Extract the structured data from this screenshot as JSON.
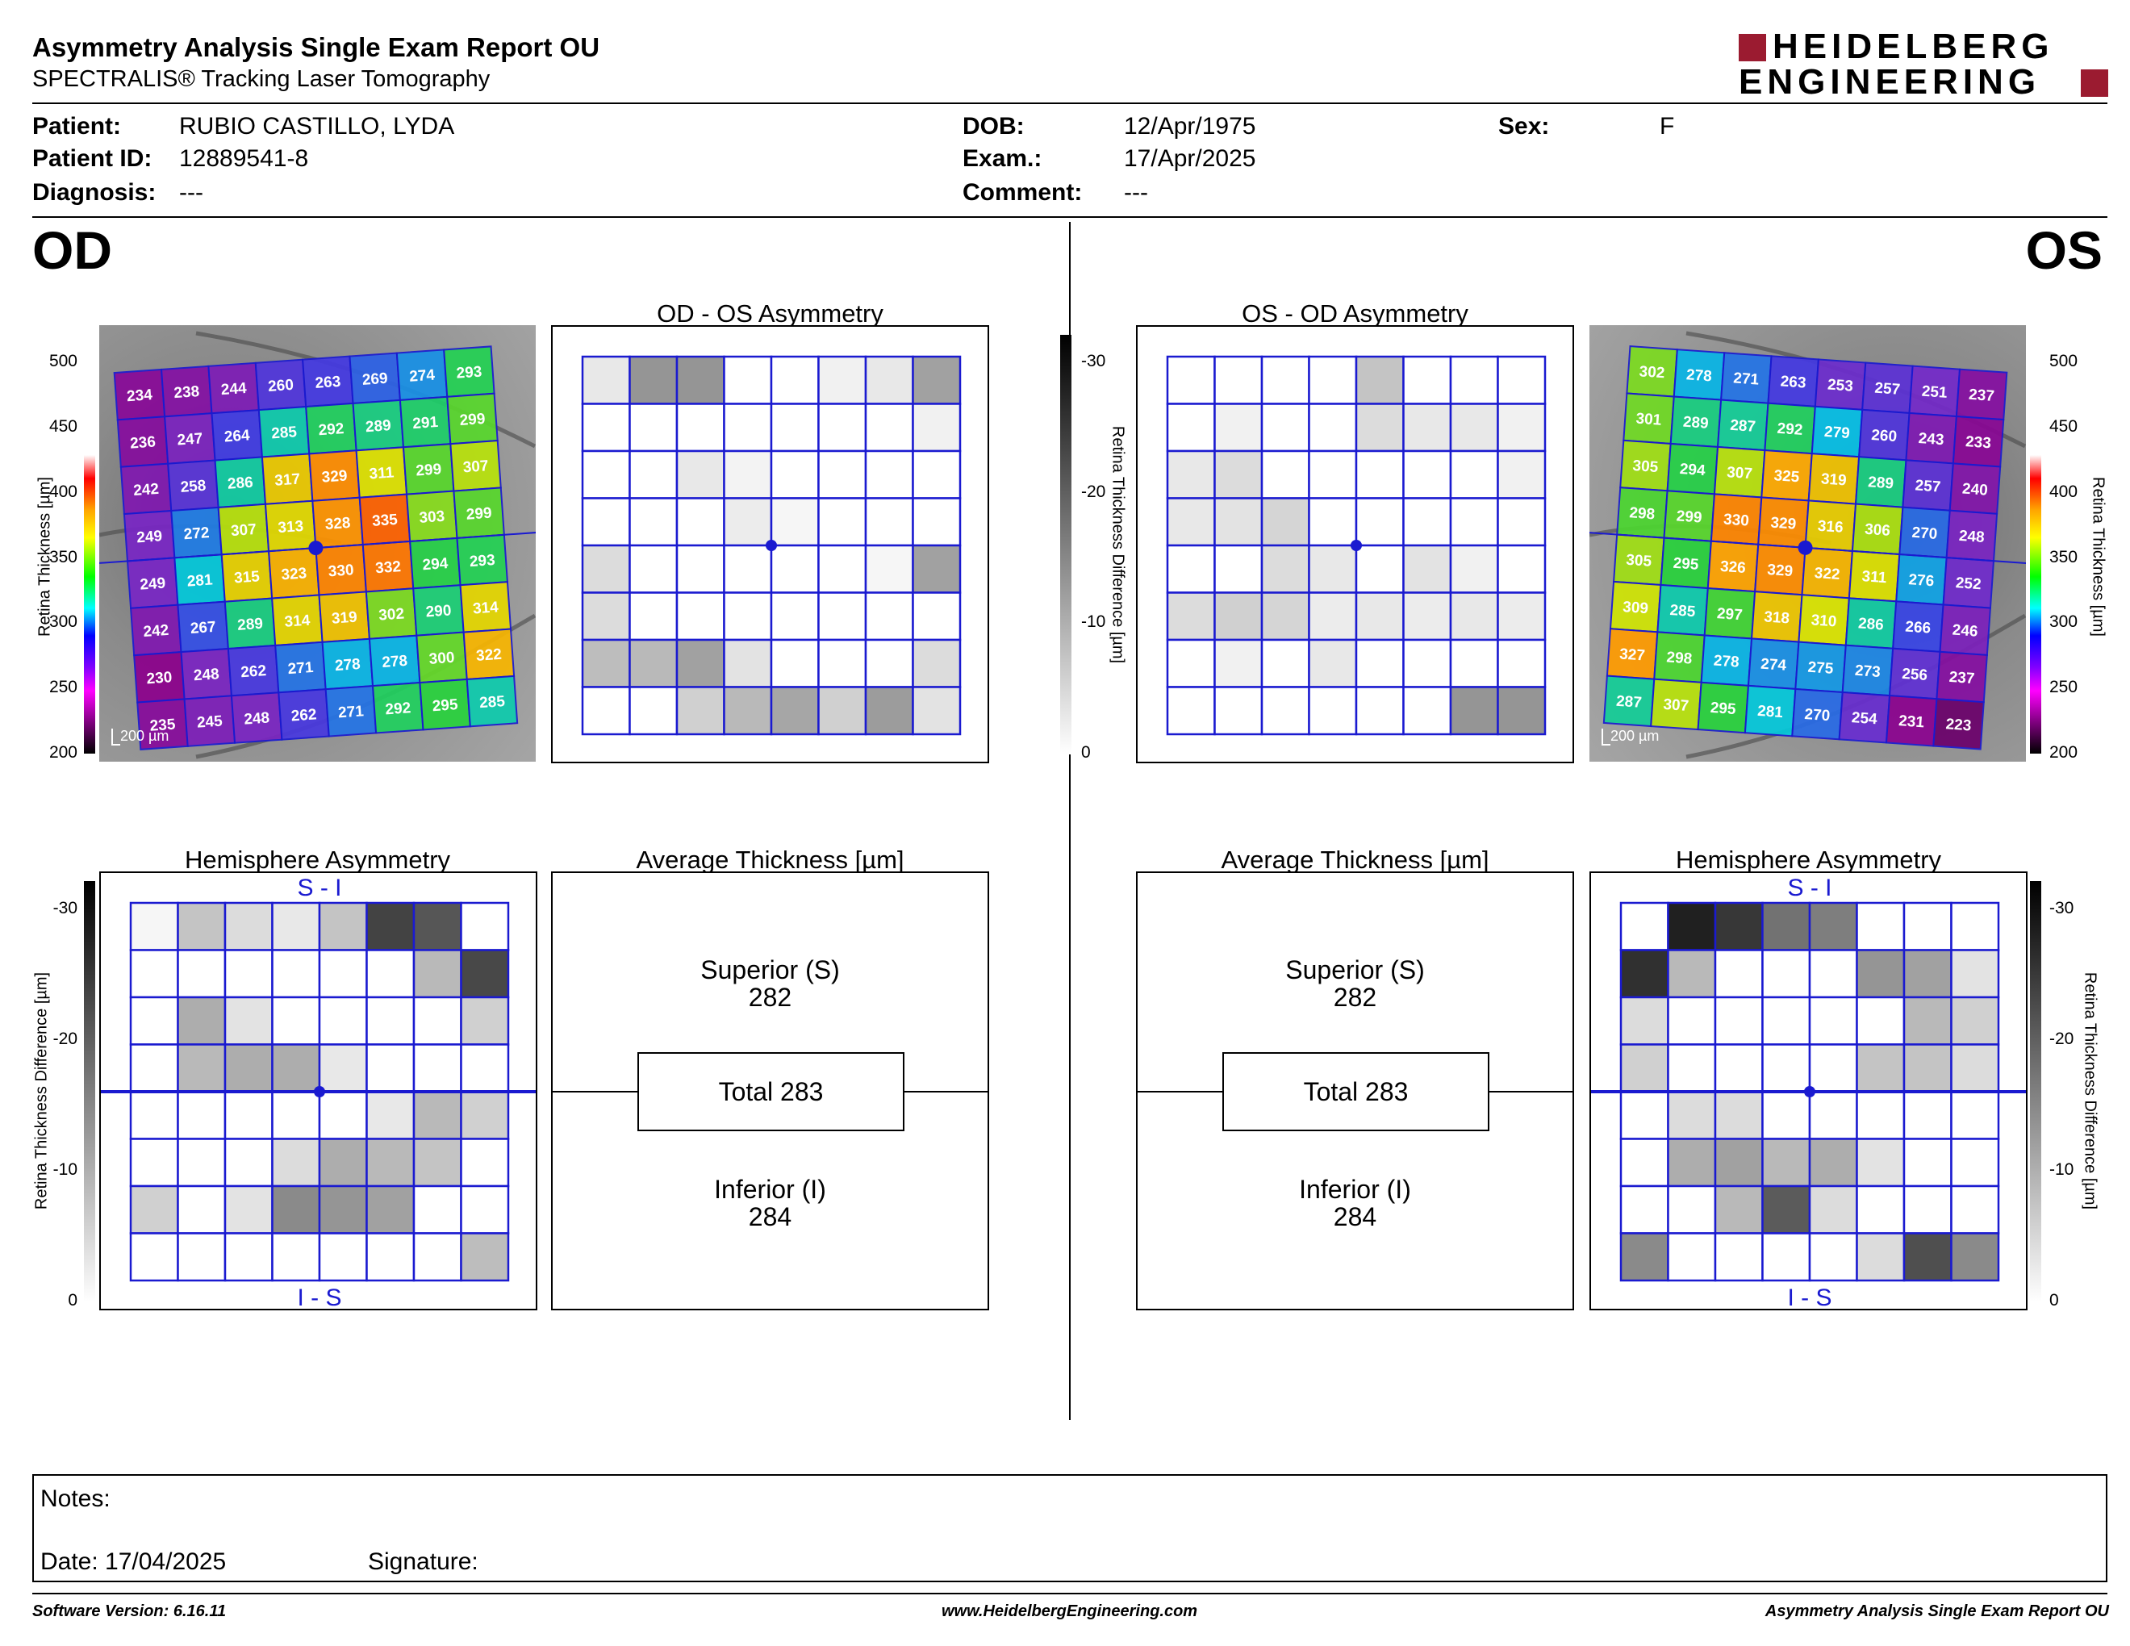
{
  "header": {
    "title": "Asymmetry Analysis Single Exam Report OU",
    "subtitle": "SPECTRALIS® Tracking Laser Tomography",
    "logo_line1": "HEIDELBERG",
    "logo_line2": "ENGINEERING"
  },
  "patient": {
    "patient_label": "Patient:",
    "patient_value": "RUBIO CASTILLO, LYDA",
    "id_label": "Patient ID:",
    "id_value": "12889541-8",
    "diagnosis_label": "Diagnosis:",
    "diagnosis_value": "---",
    "dob_label": "DOB:",
    "dob_value": "12/Apr/1975",
    "exam_label": "Exam.:",
    "exam_value": "17/Apr/2025",
    "comment_label": "Comment:",
    "comment_value": "---",
    "sex_label": "Sex:",
    "sex_value": "F"
  },
  "od": {
    "label": "OD",
    "asym_title": "OD - OS Asymmetry",
    "hemi_title": "Hemisphere Asymmetry",
    "avg_title": "Average Thickness [µm]",
    "hemi_top": "S - I",
    "hemi_bottom": "I - S",
    "superior_label": "Superior (S)",
    "superior_value": "282",
    "total_label": "Total 283",
    "inferior_label": "Inferior (I)",
    "inferior_value": "284",
    "scale_bar": "200 µm",
    "thickness": [
      [
        234,
        238,
        244,
        260,
        263,
        269,
        274,
        293
      ],
      [
        236,
        247,
        264,
        285,
        292,
        289,
        291,
        299
      ],
      [
        242,
        258,
        286,
        317,
        329,
        311,
        299,
        307
      ],
      [
        249,
        272,
        307,
        313,
        328,
        335,
        303,
        299
      ],
      [
        249,
        281,
        315,
        323,
        330,
        332,
        294,
        293
      ],
      [
        242,
        267,
        289,
        314,
        319,
        302,
        290,
        314
      ],
      [
        230,
        248,
        262,
        271,
        278,
        278,
        300,
        322
      ],
      [
        235,
        245,
        248,
        262,
        271,
        292,
        295,
        285
      ]
    ],
    "asym_gray": [
      [
        0.1,
        0.45,
        0.45,
        0,
        0,
        0.06,
        0.1,
        0.4
      ],
      [
        0,
        0,
        0,
        0,
        0,
        0,
        0,
        0.06
      ],
      [
        0,
        0,
        0.1,
        0.05,
        0,
        0,
        0,
        0
      ],
      [
        0,
        0,
        0,
        0.08,
        0.04,
        0,
        0,
        0
      ],
      [
        0.15,
        0,
        0,
        0,
        0,
        0,
        0.04,
        0.4
      ],
      [
        0.15,
        0,
        0,
        0,
        0,
        0,
        0,
        0
      ],
      [
        0.28,
        0.3,
        0.4,
        0.12,
        0,
        0,
        0,
        0.15
      ],
      [
        0,
        0,
        0.2,
        0.3,
        0.38,
        0.2,
        0.42,
        0.12
      ]
    ],
    "hemi_gray": [
      [
        0.04,
        0.25,
        0.15,
        0.1,
        0.25,
        0.8,
        0.72,
        0
      ],
      [
        0,
        0,
        0,
        0,
        0,
        0,
        0.3,
        0.78
      ],
      [
        0,
        0.35,
        0.12,
        0,
        0,
        0,
        0,
        0.2
      ],
      [
        0,
        0.3,
        0.35,
        0.35,
        0.1,
        0,
        0,
        0
      ],
      [
        0,
        0,
        0,
        0,
        0,
        0.1,
        0.3,
        0.2
      ],
      [
        0,
        0,
        0,
        0.15,
        0.35,
        0.3,
        0.25,
        0
      ],
      [
        0.2,
        0,
        0.12,
        0.5,
        0.45,
        0.4,
        0,
        0
      ],
      [
        0,
        0,
        0,
        0,
        0,
        0,
        0,
        0.28
      ]
    ]
  },
  "os": {
    "label": "OS",
    "asym_title": "OS - OD Asymmetry",
    "hemi_title": "Hemisphere Asymmetry",
    "avg_title": "Average Thickness [µm]",
    "hemi_top": "S - I",
    "hemi_bottom": "I - S",
    "superior_label": "Superior (S)",
    "superior_value": "282",
    "total_label": "Total 283",
    "inferior_label": "Inferior (I)",
    "inferior_value": "284",
    "scale_bar": "200 µm",
    "thickness": [
      [
        302,
        278,
        271,
        263,
        253,
        257,
        251,
        237
      ],
      [
        301,
        289,
        287,
        292,
        279,
        260,
        243,
        233
      ],
      [
        305,
        294,
        307,
        325,
        319,
        289,
        257,
        240
      ],
      [
        298,
        299,
        330,
        329,
        316,
        306,
        270,
        248
      ],
      [
        305,
        295,
        326,
        329,
        322,
        311,
        276,
        252
      ],
      [
        309,
        285,
        297,
        318,
        310,
        286,
        266,
        246
      ],
      [
        327,
        298,
        278,
        274,
        275,
        273,
        256,
        237
      ],
      [
        287,
        307,
        295,
        281,
        270,
        254,
        231,
        223
      ]
    ],
    "asym_gray": [
      [
        0,
        0,
        0,
        0,
        0.25,
        0,
        0,
        0
      ],
      [
        0,
        0.06,
        0,
        0,
        0.15,
        0.1,
        0.1,
        0.06
      ],
      [
        0.1,
        0.15,
        0,
        0,
        0,
        0,
        0,
        0.06
      ],
      [
        0.1,
        0.12,
        0.18,
        0,
        0,
        0,
        0,
        0
      ],
      [
        0,
        0,
        0.15,
        0.1,
        0,
        0.12,
        0.06,
        0
      ],
      [
        0.15,
        0.2,
        0.18,
        0.08,
        0.1,
        0.08,
        0.1,
        0.08
      ],
      [
        0,
        0.06,
        0,
        0.1,
        0,
        0,
        0,
        0
      ],
      [
        0,
        0,
        0,
        0,
        0,
        0,
        0.45,
        0.45
      ]
    ],
    "hemi_gray": [
      [
        0,
        0.95,
        0.85,
        0.6,
        0.55,
        0,
        0,
        0
      ],
      [
        0.88,
        0.3,
        0,
        0,
        0,
        0.45,
        0.4,
        0.12
      ],
      [
        0.15,
        0,
        0,
        0,
        0,
        0,
        0.3,
        0.2
      ],
      [
        0.2,
        0,
        0,
        0,
        0,
        0.25,
        0.25,
        0.15
      ],
      [
        0,
        0.15,
        0.15,
        0,
        0,
        0,
        0,
        0
      ],
      [
        0,
        0.35,
        0.4,
        0.3,
        0.35,
        0.12,
        0,
        0
      ],
      [
        0,
        0,
        0.3,
        0.7,
        0.15,
        0,
        0,
        0
      ],
      [
        0.5,
        0,
        0,
        0,
        0,
        0.15,
        0.75,
        0.5
      ]
    ]
  },
  "scales": {
    "thickness_label": "Retina Thickness [µm]",
    "thickness_ticks": [
      "500",
      "450",
      "400",
      "350",
      "300",
      "250",
      "200"
    ],
    "diff_label": "Retina Thickness Difference [µm]",
    "diff_ticks": [
      "-30",
      "-20",
      "-10",
      "0"
    ]
  },
  "notes": {
    "notes_label": "Notes:",
    "date_label": "Date: 17/04/2025",
    "signature_label": "Signature:"
  },
  "footer": {
    "software": "Software Version: 6.16.11",
    "website": "www.HeidelbergEngineering.com",
    "report_name": "Asymmetry Analysis Single Exam Report OU"
  },
  "colors": {
    "grid_blue": "#1a1ad0",
    "logo_red": "#9b1b30"
  }
}
